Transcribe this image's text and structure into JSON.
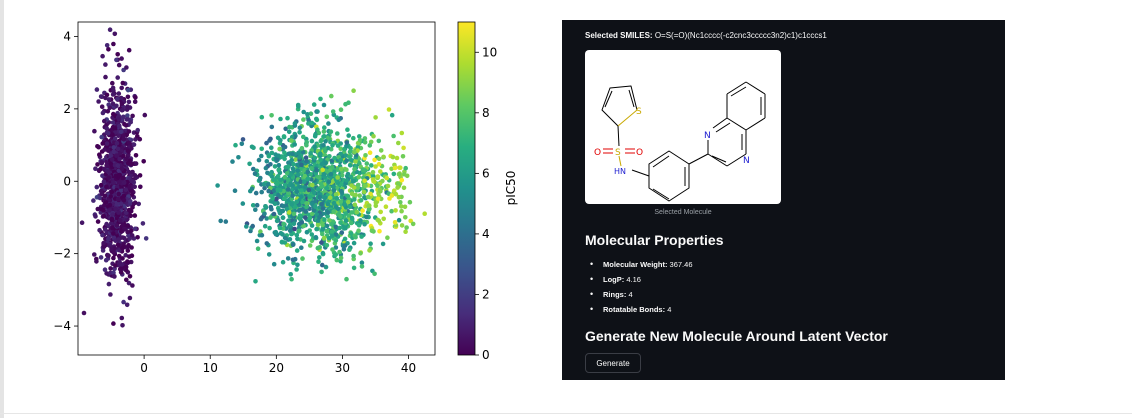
{
  "chart_data": {
    "type": "scatter",
    "title": "",
    "xlabel": "",
    "ylabel": "",
    "xlim": [
      -10,
      44
    ],
    "ylim": [
      -4.8,
      4.4
    ],
    "xticks": [
      0,
      10,
      20,
      30,
      40
    ],
    "yticks": [
      -4,
      -2,
      0,
      2,
      4
    ],
    "colorbar": {
      "label": "pIC50",
      "colormap": "viridis",
      "range": [
        0,
        11
      ],
      "ticks": [
        0,
        2,
        4,
        6,
        8,
        10
      ]
    },
    "clusters": [
      {
        "x_center": -4,
        "x_spread": 1.3,
        "y_center": 0,
        "y_spread": 1.3,
        "color_value_center": 0.5,
        "color_value_spread": 0.6
      },
      {
        "x_center": 26,
        "x_spread": 4.5,
        "y_center": -0.2,
        "y_spread": 0.9,
        "color_value_center": 6.5,
        "color_value_spread": 1.3
      },
      {
        "x_center": 36,
        "x_spread": 2.5,
        "y_center": -0.1,
        "y_spread": 0.7,
        "color_value_center": 9.5,
        "color_value_spread": 0.8
      }
    ],
    "grid": false
  },
  "panel": {
    "smiles_label": "Selected SMILES:",
    "smiles_value": "O=S(=O)(Nc1cccc(-c2cnc3ccccc3n2)c1)c1cccs1",
    "molecule_atoms": {
      "sulfur_ring": "S",
      "sulfonyl_o1": "O",
      "sulfonyl_s": "S",
      "sulfonyl_o2": "O",
      "amine": "HN",
      "pyrazine_n1": "N",
      "pyrazine_n2": "N"
    },
    "molecule_caption": "Selected Molecule",
    "properties_title": "Molecular Properties",
    "properties": [
      {
        "label": "Molecular Weight:",
        "value": "367.46"
      },
      {
        "label": "LogP:",
        "value": "4.16"
      },
      {
        "label": "Rings:",
        "value": "4"
      },
      {
        "label": "Rotatable Bonds:",
        "value": "4"
      }
    ],
    "generate_title": "Generate New Molecule Around Latent Vector",
    "generate_button": "Generate"
  }
}
